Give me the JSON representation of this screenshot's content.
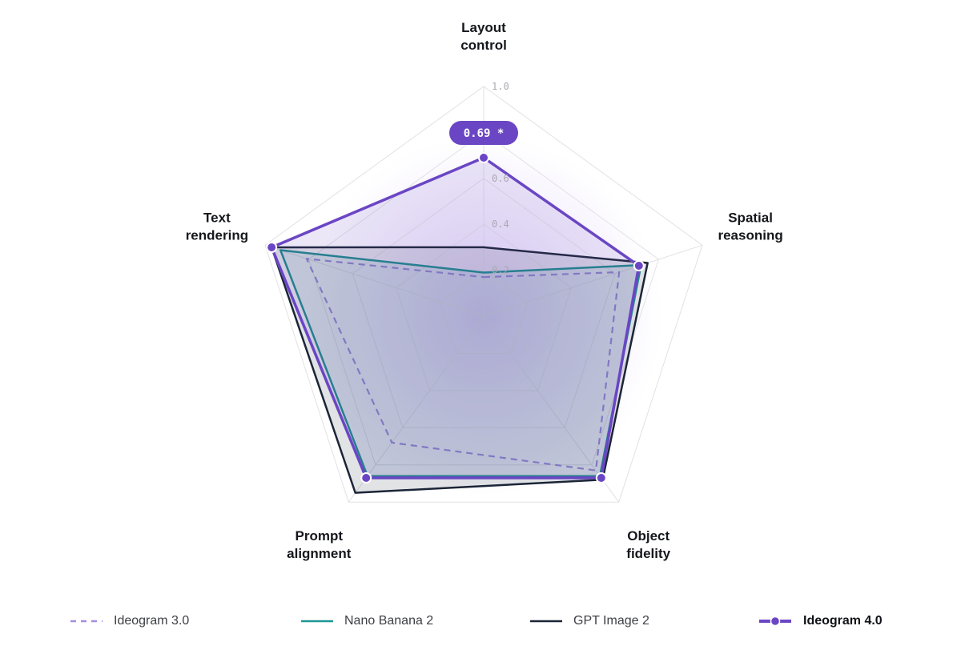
{
  "chart_data": {
    "type": "radar",
    "axes": [
      [
        "Layout",
        "control"
      ],
      [
        "Spatial",
        "reasoning"
      ],
      [
        "Object",
        "fidelity"
      ],
      [
        "Prompt",
        "alignment"
      ],
      [
        "Text",
        "rendering"
      ]
    ],
    "range": [
      0,
      1.0
    ],
    "ticks": [
      "0.2",
      "0.4",
      "0.6",
      "1.0"
    ],
    "tick_values": [
      0.2,
      0.4,
      0.6,
      1.0
    ],
    "grid_levels": [
      0.2,
      0.4,
      0.6,
      0.8,
      1.0
    ],
    "series": [
      {
        "name": "Ideogram 3.0",
        "values": [
          0.17,
          0.62,
          0.83,
          0.68,
          0.81
        ],
        "color": "#a58ee0",
        "style": "dashed"
      },
      {
        "name": "Nano Banana 2",
        "values": [
          0.19,
          0.72,
          0.86,
          0.86,
          0.93
        ],
        "color": "#1e9696",
        "style": "solid"
      },
      {
        "name": "GPT Image 2",
        "values": [
          0.3,
          0.75,
          0.88,
          0.95,
          0.97
        ],
        "color": "#1b2537",
        "style": "solid"
      },
      {
        "name": "Ideogram 4.0",
        "values": [
          0.69,
          0.71,
          0.87,
          0.87,
          0.97
        ],
        "color": "#6a46c4",
        "style": "solid-markers"
      }
    ],
    "highlight": {
      "series": "Ideogram 4.0",
      "axis_index": 0,
      "label": "0.69 *"
    },
    "legend_position": "bottom",
    "grid": true
  }
}
